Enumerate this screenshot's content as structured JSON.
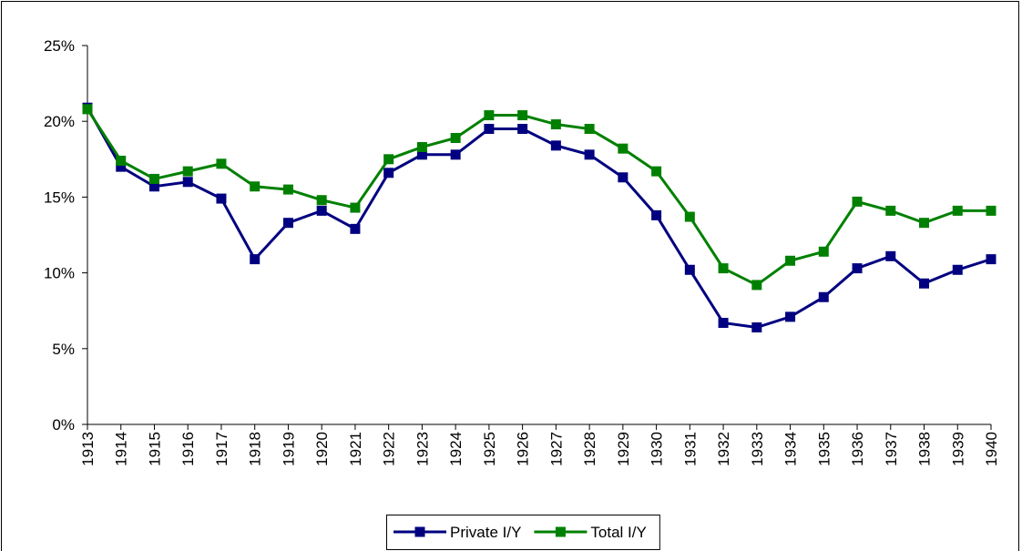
{
  "chart_data": {
    "type": "line",
    "categories": [
      "1913",
      "1914",
      "1915",
      "1916",
      "1917",
      "1918",
      "1919",
      "1920",
      "1921",
      "1922",
      "1923",
      "1924",
      "1925",
      "1926",
      "1927",
      "1928",
      "1929",
      "1930",
      "1931",
      "1932",
      "1933",
      "1934",
      "1935",
      "1936",
      "1937",
      "1938",
      "1939",
      "1940"
    ],
    "series": [
      {
        "name": "Private I/Y",
        "color": "#000080",
        "values": [
          20.9,
          17.0,
          15.7,
          16.0,
          14.9,
          10.9,
          13.3,
          14.1,
          12.9,
          16.6,
          17.8,
          17.8,
          19.5,
          19.5,
          18.4,
          17.8,
          16.3,
          13.8,
          10.2,
          6.7,
          6.4,
          7.1,
          8.4,
          10.3,
          11.1,
          9.3,
          10.2,
          10.9
        ]
      },
      {
        "name": "Total I/Y",
        "color": "#008000",
        "values": [
          20.8,
          17.4,
          16.2,
          16.7,
          17.2,
          15.7,
          15.5,
          14.8,
          14.3,
          17.5,
          18.3,
          18.9,
          20.4,
          20.4,
          19.8,
          19.5,
          18.2,
          16.7,
          13.7,
          10.3,
          9.2,
          10.8,
          11.4,
          14.7,
          14.1,
          13.3,
          14.1,
          14.1
        ]
      }
    ],
    "ylim": [
      0,
      25
    ],
    "yticks": [
      {
        "value": 0,
        "label": "0%"
      },
      {
        "value": 5,
        "label": "5%"
      },
      {
        "value": 10,
        "label": "10%"
      },
      {
        "value": 15,
        "label": "15%"
      },
      {
        "value": 20,
        "label": "20%"
      },
      {
        "value": 25,
        "label": "25%"
      }
    ],
    "grid": false,
    "legend": "bottom"
  }
}
